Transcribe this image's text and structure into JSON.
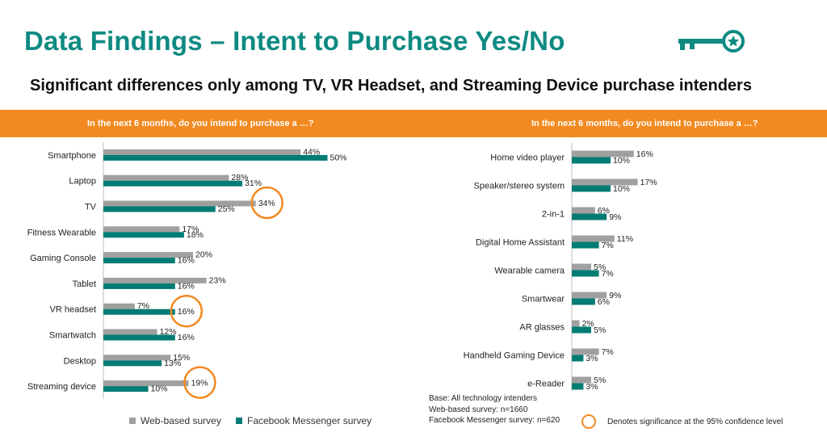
{
  "header": {
    "title": "Data Findings – Intent to Purchase Yes/No",
    "subtitle": "Significant differences only among TV, VR Headset, and Streaming Device purchase intenders",
    "icon": "key-star-icon"
  },
  "colors": {
    "accent": "#0e8a82",
    "banner": "#f28a21",
    "web": "#a0a0a0",
    "fb": "#007c74",
    "highlight": "#f28a21"
  },
  "legend": {
    "web_label": "Web-based survey",
    "fb_label": "Facebook Messenger survey"
  },
  "notes": {
    "base": "Base: All technology intenders",
    "web_n": "Web-based survey: n=1660",
    "fb_n": "Facebook Messenger survey: n=620",
    "significance": "Denotes significance at the 95% confidence level"
  },
  "chart_data": [
    {
      "type": "bar",
      "orientation": "horizontal",
      "title": "In the next 6 months, do you intend to purchase a …?",
      "categories": [
        "Smartphone",
        "Laptop",
        "TV",
        "Fitness Wearable",
        "Gaming Console",
        "Tablet",
        "VR headset",
        "Smartwatch",
        "Desktop",
        "Streaming device"
      ],
      "series": [
        {
          "name": "Web-based survey",
          "values": [
            44,
            28,
            34,
            17,
            20,
            23,
            7,
            12,
            15,
            19
          ]
        },
        {
          "name": "Facebook Messenger survey",
          "values": [
            50,
            31,
            25,
            18,
            16,
            16,
            16,
            16,
            13,
            10
          ]
        }
      ],
      "value_suffix": "%",
      "significant": [
        {
          "category": "TV",
          "series": 0
        },
        {
          "category": "VR headset",
          "series": 1
        },
        {
          "category": "Streaming device",
          "series": 0
        }
      ]
    },
    {
      "type": "bar",
      "orientation": "horizontal",
      "title": "In the next 6 months, do you intend to purchase a …?",
      "categories": [
        "Home video player",
        "Speaker/stereo system",
        "2-in-1",
        "Digital Home Assistant",
        "Wearable camera",
        "Smartwear",
        "AR glasses",
        "Handheld Gaming Device",
        "e-Reader"
      ],
      "series": [
        {
          "name": "Web-based survey",
          "values": [
            16,
            17,
            6,
            11,
            5,
            9,
            2,
            7,
            5
          ]
        },
        {
          "name": "Facebook Messenger survey",
          "values": [
            10,
            10,
            9,
            7,
            7,
            6,
            5,
            3,
            3
          ]
        }
      ],
      "value_suffix": "%",
      "significant": []
    }
  ]
}
